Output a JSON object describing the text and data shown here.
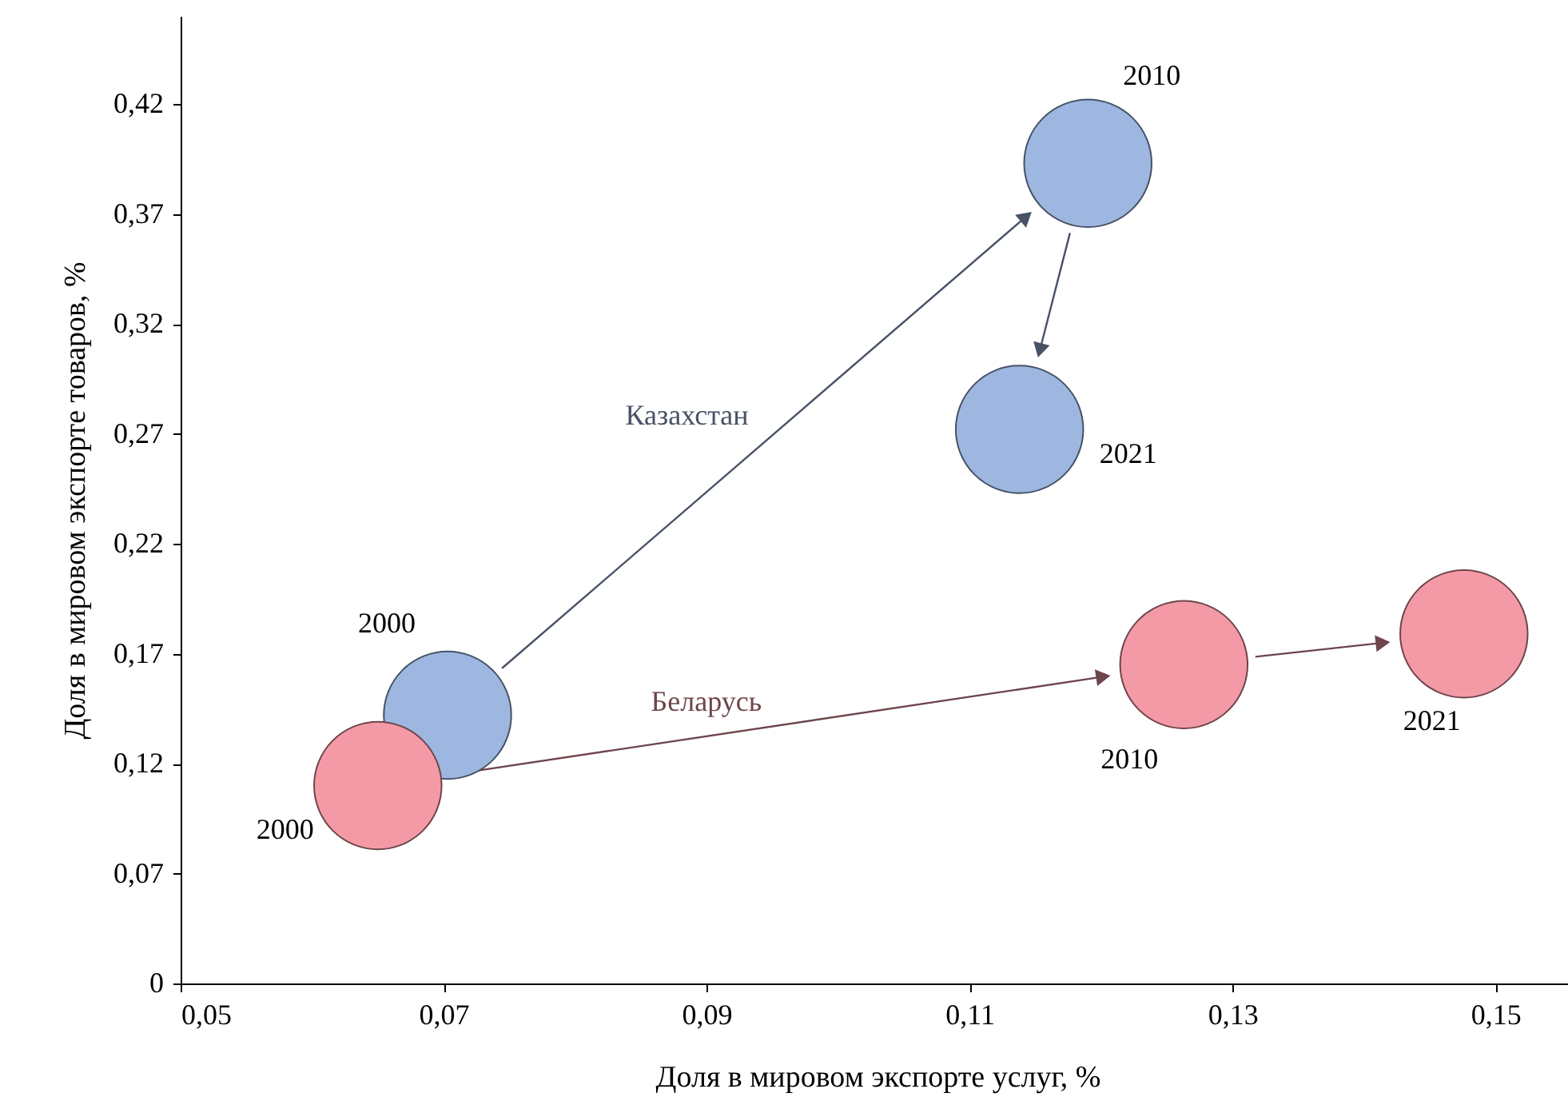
{
  "chart_data": {
    "type": "bubble",
    "xlabel": "Доля в мировом экспорте услуг, %",
    "ylabel": "Доля в мировом экспорте товаров, %",
    "xlim": [
      0.05,
      0.156
    ],
    "xticks": [
      {
        "value": 0.05,
        "label": "0,05"
      },
      {
        "value": 0.07,
        "label": "0,07"
      },
      {
        "value": 0.09,
        "label": "0,09"
      },
      {
        "value": 0.11,
        "label": "0,11"
      },
      {
        "value": 0.13,
        "label": "0,13"
      },
      {
        "value": 0.15,
        "label": "0,15"
      }
    ],
    "ylim": [
      0.02,
      0.46
    ],
    "yticks": [
      {
        "value": 0.02,
        "label": "0"
      },
      {
        "value": 0.07,
        "label": "0,07"
      },
      {
        "value": 0.12,
        "label": "0,12"
      },
      {
        "value": 0.17,
        "label": "0,17"
      },
      {
        "value": 0.22,
        "label": "0,22"
      },
      {
        "value": 0.27,
        "label": "0,27"
      },
      {
        "value": 0.32,
        "label": "0,32"
      },
      {
        "value": 0.37,
        "label": "0,37"
      },
      {
        "value": 0.42,
        "label": "0,42"
      }
    ],
    "series": [
      {
        "name": "Казахстан",
        "color": "#9db7e0",
        "x": [
          0.0703,
          0.119,
          0.1138
        ],
        "values": [
          0.142,
          0.393,
          0.272
        ],
        "sizes": [
          1,
          1,
          1
        ]
      },
      {
        "name": "Беларусь",
        "color": "#f49aa6",
        "x": [
          0.065,
          0.1263,
          0.1476
        ],
        "values": [
          0.11,
          0.165,
          0.179
        ],
        "sizes": [
          1,
          1,
          1
        ]
      }
    ],
    "annotations": [
      {
        "text": "2000",
        "x": 0.0703,
        "y": 0.142
      },
      {
        "text": "2010",
        "x": 0.119,
        "y": 0.393
      },
      {
        "text": "2021",
        "x": 0.1138,
        "y": 0.272
      },
      {
        "text": "2000",
        "x": 0.065,
        "y": 0.11
      },
      {
        "text": "2010",
        "x": 0.1263,
        "y": 0.165
      },
      {
        "text": "2021",
        "x": 0.1476,
        "y": 0.179
      }
    ],
    "grid": false
  }
}
